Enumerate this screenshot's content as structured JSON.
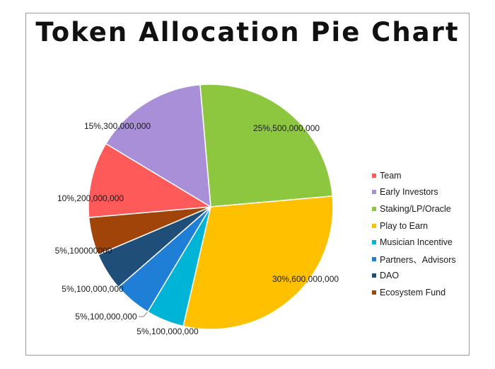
{
  "chart_data": {
    "type": "pie",
    "title": "Token Allocation Pie Chart",
    "start_angle_deg": -5,
    "slices": [
      {
        "name": "Staking/LP/Oracle",
        "percent": 25,
        "amount": "500,000,000",
        "label": "25%,500,000,000",
        "color": "#8dc63f"
      },
      {
        "name": "Play to Earn",
        "percent": 30,
        "amount": "600,000,000",
        "label": "30%,600,000,000",
        "color": "#ffc000"
      },
      {
        "name": "Musician Incentive",
        "percent": 5,
        "amount": "100,000,000",
        "label": "5%,100,000,000",
        "color": "#00b4d8"
      },
      {
        "name": "Partners、Advisors",
        "percent": 5,
        "amount": "100,000,000",
        "label": "5%,100,000,000",
        "color": "#1f7ed6"
      },
      {
        "name": "DAO",
        "percent": 5,
        "amount": "100,000,000",
        "label": "5%,100,000,000",
        "color": "#1f4e79"
      },
      {
        "name": "Ecosystem Fund",
        "percent": 5,
        "amount": "100000000",
        "label": "5%,100000000",
        "color": "#a0440a"
      },
      {
        "name": "Team",
        "percent": 10,
        "amount": "200,000,000",
        "label": "10%,200,000,000",
        "color": "#ff5a5a"
      },
      {
        "name": "Early Investors",
        "percent": 15,
        "amount": "300,000,000",
        "label": "15%,300,000,000",
        "color": "#a98fd8"
      }
    ],
    "legend": {
      "placement": "right",
      "entries": [
        {
          "name": "Team",
          "color": "#ff5a5a"
        },
        {
          "name": "Early Investors",
          "color": "#a98fd8"
        },
        {
          "name": "Staking/LP/Oracle",
          "color": "#8dc63f"
        },
        {
          "name": "Play to Earn",
          "color": "#ffc000"
        },
        {
          "name": "Musician Incentive",
          "color": "#00b4d8"
        },
        {
          "name": "Partners、Advisors",
          "color": "#1f7ed6"
        },
        {
          "name": "DAO",
          "color": "#1f4e79"
        },
        {
          "name": "Ecosystem Fund",
          "color": "#a0440a"
        }
      ]
    }
  }
}
